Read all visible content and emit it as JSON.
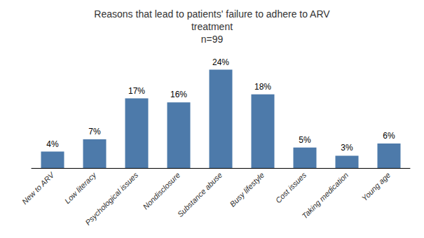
{
  "chart_data": {
    "type": "bar",
    "title": "Reasons that lead to patients' failure to adhere to ARV\ntreatment\nn=99",
    "categories": [
      "New to ARV",
      "Low literacy",
      "Psychological issues",
      "Nondisclosure",
      "Substance abuse",
      "Busy lifestyle",
      "Cost issues",
      "Taking medication",
      "Young age"
    ],
    "values": [
      4,
      7,
      17,
      16,
      24,
      18,
      5,
      3,
      6
    ],
    "value_labels": [
      "4%",
      "7%",
      "17%",
      "16%",
      "24%",
      "18%",
      "5%",
      "3%",
      "6%"
    ],
    "color": "#4d7aaa",
    "ylim": [
      0,
      27
    ],
    "grid": false,
    "data_labels": true,
    "tick_labels": "x"
  }
}
